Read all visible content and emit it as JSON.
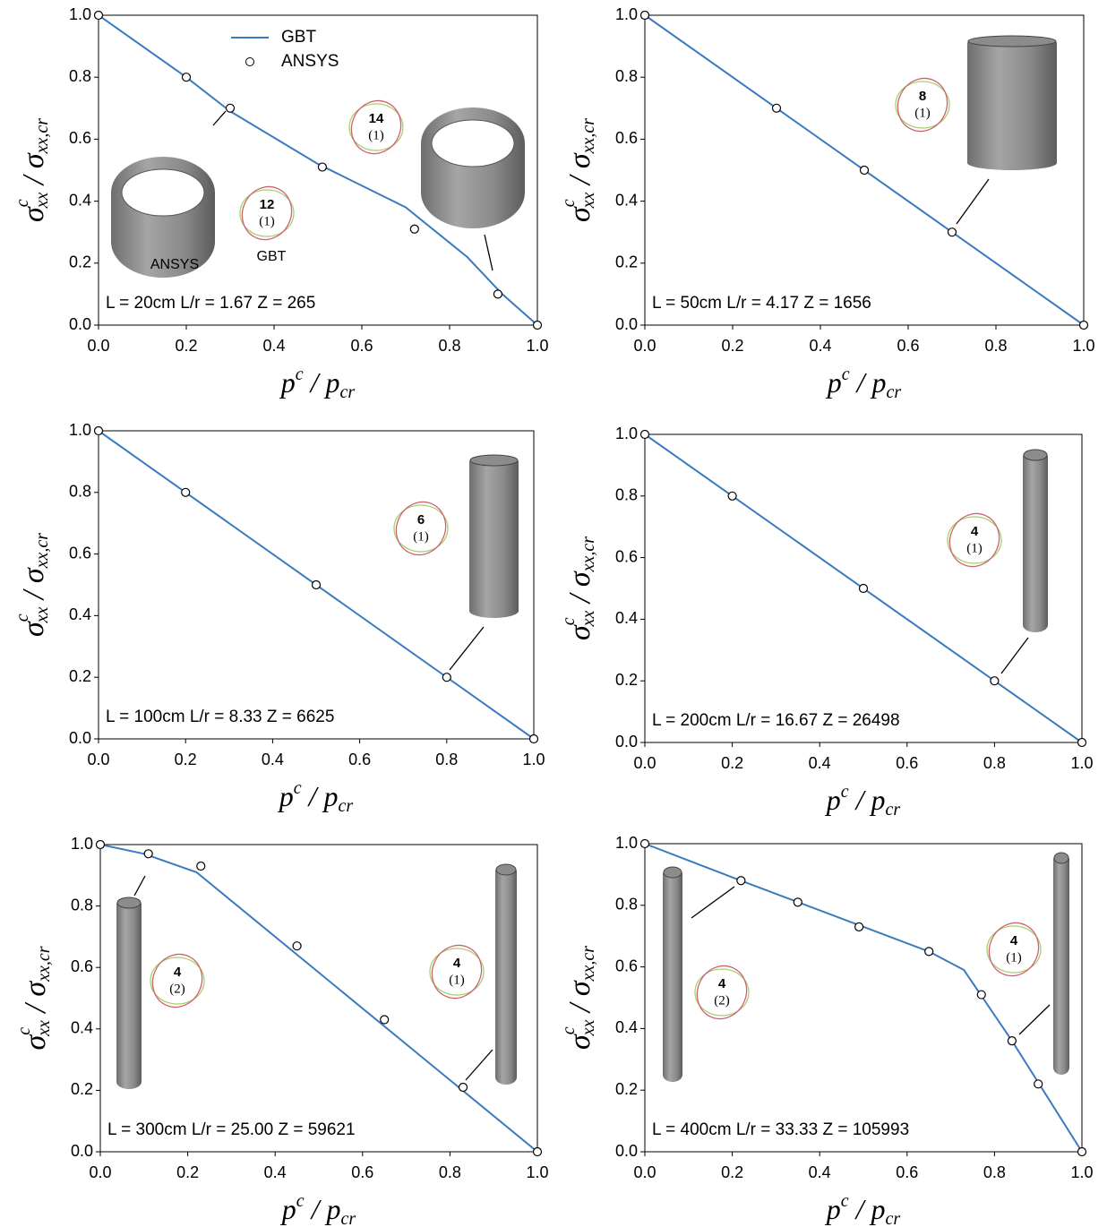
{
  "chart_data": [
    {
      "type": "line",
      "xlabel": [
        "p",
        "c",
        " / p",
        "cr"
      ],
      "ylabel": [
        "σ",
        "c",
        "xx",
        " / σ",
        "xx,cr"
      ],
      "xlim": [
        0,
        1
      ],
      "ylim": [
        0,
        1
      ],
      "xticks": [
        {
          "value": 0,
          "label": "0.0"
        },
        {
          "value": 0.2,
          "label": "0.2"
        },
        {
          "value": 0.4,
          "label": "0.4"
        },
        {
          "value": 0.6,
          "label": "0.6"
        },
        {
          "value": 0.8,
          "label": "0.8"
        },
        {
          "value": 1,
          "label": "1.0"
        }
      ],
      "yticks": [
        {
          "value": 0,
          "label": "0.0"
        },
        {
          "value": 0.2,
          "label": "0.2"
        },
        {
          "value": 0.4,
          "label": "0.4"
        },
        {
          "value": 0.6,
          "label": "0.6"
        },
        {
          "value": 0.8,
          "label": "0.8"
        },
        {
          "value": 1,
          "label": "1.0"
        }
      ],
      "legend": true,
      "series": [
        {
          "name": "GBT",
          "style": "line",
          "color": "#3a7bbf",
          "x": [
            0,
            0.2,
            0.3,
            0.5,
            0.7,
            0.84,
            0.92,
            1
          ],
          "values": [
            1,
            0.8,
            0.69,
            0.52,
            0.38,
            0.22,
            0.1,
            0
          ]
        },
        {
          "name": "ANSYS",
          "style": "markers",
          "color": "#000000",
          "x": [
            0,
            0.2,
            0.3,
            0.51,
            0.72,
            0.91,
            1
          ],
          "values": [
            1,
            0.8,
            0.7,
            0.51,
            0.31,
            0.1,
            0
          ]
        }
      ],
      "annotation": "L = 20cm  L/r = 1.67  Z = 265",
      "modes": [
        {
          "n": "14",
          "m": "(1)"
        },
        {
          "n": "12",
          "m": "(1)"
        }
      ],
      "shape_labels": [
        "ANSYS",
        "GBT"
      ]
    },
    {
      "type": "line",
      "xlabel": [
        "p",
        "c",
        " / p",
        "cr"
      ],
      "ylabel": [
        "σ",
        "c",
        "xx",
        " / σ",
        "xx,cr"
      ],
      "xlim": [
        0,
        1
      ],
      "ylim": [
        0,
        1
      ],
      "xticks": [
        {
          "value": 0,
          "label": "0.0"
        },
        {
          "value": 0.2,
          "label": "0.2"
        },
        {
          "value": 0.4,
          "label": "0.4"
        },
        {
          "value": 0.6,
          "label": "0.6"
        },
        {
          "value": 0.8,
          "label": "0.8"
        },
        {
          "value": 1,
          "label": "1.0"
        }
      ],
      "yticks": [
        {
          "value": 0,
          "label": "0.0"
        },
        {
          "value": 0.2,
          "label": "0.2"
        },
        {
          "value": 0.4,
          "label": "0.4"
        },
        {
          "value": 0.6,
          "label": "0.6"
        },
        {
          "value": 0.8,
          "label": "0.8"
        },
        {
          "value": 1,
          "label": "1.0"
        }
      ],
      "legend": false,
      "series": [
        {
          "style": "line",
          "color": "#3a7bbf",
          "x": [
            0,
            1
          ],
          "values": [
            1,
            0
          ]
        },
        {
          "style": "markers",
          "color": "#000000",
          "x": [
            0,
            0.3,
            0.5,
            0.7,
            1
          ],
          "values": [
            1,
            0.7,
            0.5,
            0.3,
            0
          ]
        }
      ],
      "annotation": "L = 50cm  L/r = 4.17  Z = 1656",
      "modes": [
        {
          "n": "8",
          "m": "(1)"
        }
      ]
    },
    {
      "type": "line",
      "xlabel": [
        "p",
        "c",
        " / p",
        "cr"
      ],
      "ylabel": [
        "σ",
        "c",
        "xx",
        " / σ",
        "xx,cr"
      ],
      "xlim": [
        0,
        1
      ],
      "ylim": [
        0,
        1
      ],
      "xticks": [
        {
          "value": 0,
          "label": "0.0"
        },
        {
          "value": 0.2,
          "label": "0.2"
        },
        {
          "value": 0.4,
          "label": "0.4"
        },
        {
          "value": 0.6,
          "label": "0.6"
        },
        {
          "value": 0.8,
          "label": "0.8"
        },
        {
          "value": 1,
          "label": "1.0"
        }
      ],
      "yticks": [
        {
          "value": 0,
          "label": "0.0"
        },
        {
          "value": 0.2,
          "label": "0.2"
        },
        {
          "value": 0.4,
          "label": "0.4"
        },
        {
          "value": 0.6,
          "label": "0.6"
        },
        {
          "value": 0.8,
          "label": "0.8"
        },
        {
          "value": 1,
          "label": "1.0"
        }
      ],
      "legend": false,
      "series": [
        {
          "style": "line",
          "color": "#3a7bbf",
          "x": [
            0,
            1
          ],
          "values": [
            1,
            0
          ]
        },
        {
          "style": "markers",
          "color": "#000000",
          "x": [
            0,
            0.2,
            0.5,
            0.8,
            1
          ],
          "values": [
            1,
            0.8,
            0.5,
            0.2,
            0
          ]
        }
      ],
      "annotation": "L = 100cm  L/r = 8.33  Z = 6625",
      "modes": [
        {
          "n": "6",
          "m": "(1)"
        }
      ]
    },
    {
      "type": "line",
      "xlabel": [
        "p",
        "c",
        " / p",
        "cr"
      ],
      "ylabel": [
        "σ",
        "c",
        "xx",
        " / σ",
        "xx,cr"
      ],
      "xlim": [
        0,
        1
      ],
      "ylim": [
        0,
        1
      ],
      "xticks": [
        {
          "value": 0,
          "label": "0.0"
        },
        {
          "value": 0.2,
          "label": "0.2"
        },
        {
          "value": 0.4,
          "label": "0.4"
        },
        {
          "value": 0.6,
          "label": "0.6"
        },
        {
          "value": 0.8,
          "label": "0.8"
        },
        {
          "value": 1,
          "label": "1.0"
        }
      ],
      "yticks": [
        {
          "value": 0,
          "label": "0.0"
        },
        {
          "value": 0.2,
          "label": "0.2"
        },
        {
          "value": 0.4,
          "label": "0.4"
        },
        {
          "value": 0.6,
          "label": "0.6"
        },
        {
          "value": 0.8,
          "label": "0.8"
        },
        {
          "value": 1,
          "label": "1.0"
        }
      ],
      "legend": false,
      "series": [
        {
          "style": "line",
          "color": "#3a7bbf",
          "x": [
            0,
            1
          ],
          "values": [
            1,
            0
          ]
        },
        {
          "style": "markers",
          "color": "#000000",
          "x": [
            0,
            0.2,
            0.5,
            0.8,
            1
          ],
          "values": [
            1,
            0.8,
            0.5,
            0.2,
            0
          ]
        }
      ],
      "annotation": "L = 200cm  L/r = 16.67  Z = 26498",
      "modes": [
        {
          "n": "4",
          "m": "(1)"
        }
      ]
    },
    {
      "type": "line",
      "xlabel": [
        "p",
        "c",
        " / p",
        "cr"
      ],
      "ylabel": [
        "σ",
        "c",
        "xx",
        " / σ",
        "xx,cr"
      ],
      "xlim": [
        0,
        1
      ],
      "ylim": [
        0,
        1
      ],
      "xticks": [
        {
          "value": 0,
          "label": "0.0"
        },
        {
          "value": 0.2,
          "label": "0.2"
        },
        {
          "value": 0.4,
          "label": "0.4"
        },
        {
          "value": 0.6,
          "label": "0.6"
        },
        {
          "value": 0.8,
          "label": "0.8"
        },
        {
          "value": 1,
          "label": "1.0"
        }
      ],
      "yticks": [
        {
          "value": 0,
          "label": "0.0"
        },
        {
          "value": 0.2,
          "label": "0.2"
        },
        {
          "value": 0.4,
          "label": "0.4"
        },
        {
          "value": 0.6,
          "label": "0.6"
        },
        {
          "value": 0.8,
          "label": "0.8"
        },
        {
          "value": 1,
          "label": "1.0"
        }
      ],
      "legend": false,
      "series": [
        {
          "style": "line",
          "color": "#3a7bbf",
          "x": [
            0,
            0.1,
            0.22,
            1
          ],
          "values": [
            1,
            0.97,
            0.91,
            0
          ]
        },
        {
          "style": "markers",
          "color": "#000000",
          "x": [
            0,
            0.11,
            0.23,
            0.45,
            0.65,
            0.83,
            1
          ],
          "values": [
            1,
            0.97,
            0.93,
            0.67,
            0.43,
            0.21,
            0
          ]
        }
      ],
      "annotation": "L = 300cm  L/r = 25.00  Z = 59621",
      "modes": [
        {
          "n": "4",
          "m": "(2)"
        },
        {
          "n": "4",
          "m": "(1)"
        }
      ]
    },
    {
      "type": "line",
      "xlabel": [
        "p",
        "c",
        " / p",
        "cr"
      ],
      "ylabel": [
        "σ",
        "c",
        "xx",
        " / σ",
        "xx,cr"
      ],
      "xlim": [
        0,
        1
      ],
      "ylim": [
        0,
        1
      ],
      "xticks": [
        {
          "value": 0,
          "label": "0.0"
        },
        {
          "value": 0.2,
          "label": "0.2"
        },
        {
          "value": 0.4,
          "label": "0.4"
        },
        {
          "value": 0.6,
          "label": "0.6"
        },
        {
          "value": 0.8,
          "label": "0.8"
        },
        {
          "value": 1,
          "label": "1.0"
        }
      ],
      "yticks": [
        {
          "value": 0,
          "label": "0.0"
        },
        {
          "value": 0.2,
          "label": "0.2"
        },
        {
          "value": 0.4,
          "label": "0.4"
        },
        {
          "value": 0.6,
          "label": "0.6"
        },
        {
          "value": 0.8,
          "label": "0.8"
        },
        {
          "value": 1,
          "label": "1.0"
        }
      ],
      "legend": false,
      "series": [
        {
          "style": "line",
          "color": "#3a7bbf",
          "x": [
            0,
            0.22,
            0.65,
            0.73,
            0.84,
            1
          ],
          "values": [
            1,
            0.88,
            0.65,
            0.59,
            0.36,
            0
          ]
        },
        {
          "style": "markers",
          "color": "#000000",
          "x": [
            0,
            0.22,
            0.35,
            0.49,
            0.65,
            0.77,
            0.84,
            0.9,
            1
          ],
          "values": [
            1,
            0.88,
            0.81,
            0.73,
            0.65,
            0.51,
            0.36,
            0.22,
            0
          ]
        }
      ],
      "annotation": "L = 400cm  L/r = 33.33  Z = 105993",
      "modes": [
        {
          "n": "4",
          "m": "(2)"
        },
        {
          "n": "4",
          "m": "(1)"
        }
      ]
    }
  ]
}
